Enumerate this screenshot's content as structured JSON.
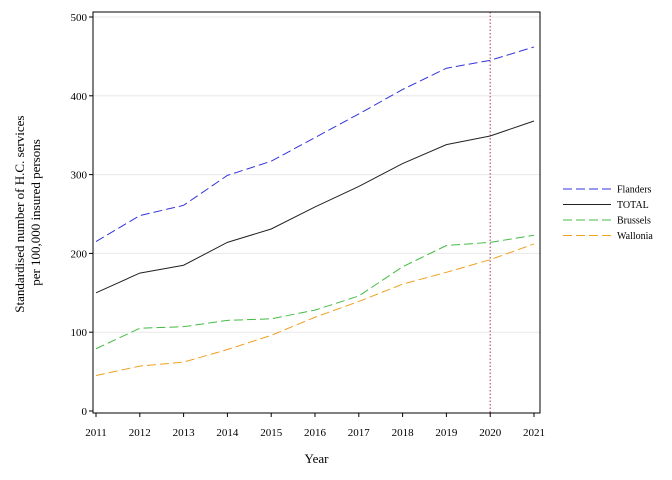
{
  "chart_data": {
    "type": "line",
    "title": "",
    "xlabel": "Year",
    "ylabel_lines": [
      "Standardised number of H.C. services",
      "per 100,000 insured persons"
    ],
    "x": [
      2011,
      2012,
      2013,
      2014,
      2015,
      2016,
      2017,
      2018,
      2019,
      2020,
      2021
    ],
    "xlim": [
      2011,
      2021
    ],
    "ylim": [
      0,
      500
    ],
    "yticks": [
      0,
      100,
      200,
      300,
      400,
      500
    ],
    "grid": "horizontal light",
    "reference_line": {
      "x": 2020,
      "color": "#c0507a",
      "style": "dotted"
    },
    "legend_position": "right",
    "series": [
      {
        "name": "Flanders",
        "color": "#3333dd",
        "dash": "dashed",
        "values": [
          215,
          248,
          261,
          299,
          317,
          347,
          377,
          408,
          435,
          445,
          462
        ]
      },
      {
        "name": "TOTAL",
        "color": "#222222",
        "dash": "solid",
        "values": [
          150,
          175,
          185,
          214,
          231,
          259,
          285,
          314,
          338,
          349,
          368
        ]
      },
      {
        "name": "Brussels",
        "color": "#44bb44",
        "dash": "dashed",
        "values": [
          79,
          105,
          107,
          115,
          117,
          128,
          146,
          183,
          210,
          214,
          223
        ]
      },
      {
        "name": "Wallonia",
        "color": "#f0a020",
        "dash": "dashed",
        "values": [
          45,
          57,
          62,
          78,
          96,
          119,
          139,
          161,
          176,
          192,
          212
        ]
      }
    ]
  }
}
